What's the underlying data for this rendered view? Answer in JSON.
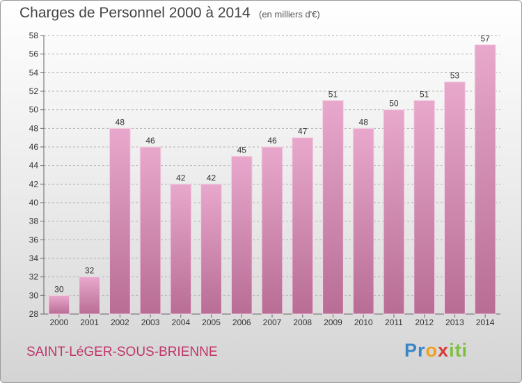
{
  "header": {
    "title": "Charges de Personnel 2000 à 2014",
    "subtitle": "(en milliers d'€)"
  },
  "footer": {
    "place": "SAINT-LéGER-SOUS-BRIENNE",
    "brand": "Proxiti"
  },
  "colors": {
    "bar_top": "#e8a8cc",
    "bar_bottom": "#b86d94",
    "grid": "#b0b0b0"
  },
  "chart_data": {
    "type": "bar",
    "title": "Charges de Personnel 2000 à 2014",
    "subtitle": "(en milliers d'€)",
    "xlabel": "",
    "ylabel": "",
    "categories": [
      "2000",
      "2001",
      "2002",
      "2003",
      "2004",
      "2005",
      "2006",
      "2007",
      "2008",
      "2009",
      "2010",
      "2011",
      "2012",
      "2013",
      "2014"
    ],
    "values": [
      30,
      32,
      48,
      46,
      42,
      42,
      45,
      46,
      47,
      51,
      48,
      50,
      51,
      53,
      57
    ],
    "ylim": [
      28,
      58
    ],
    "yticks": [
      28,
      30,
      32,
      34,
      36,
      38,
      40,
      42,
      44,
      46,
      48,
      50,
      52,
      54,
      56,
      58
    ],
    "grid": "horizontal dashed",
    "data_labels": true
  }
}
